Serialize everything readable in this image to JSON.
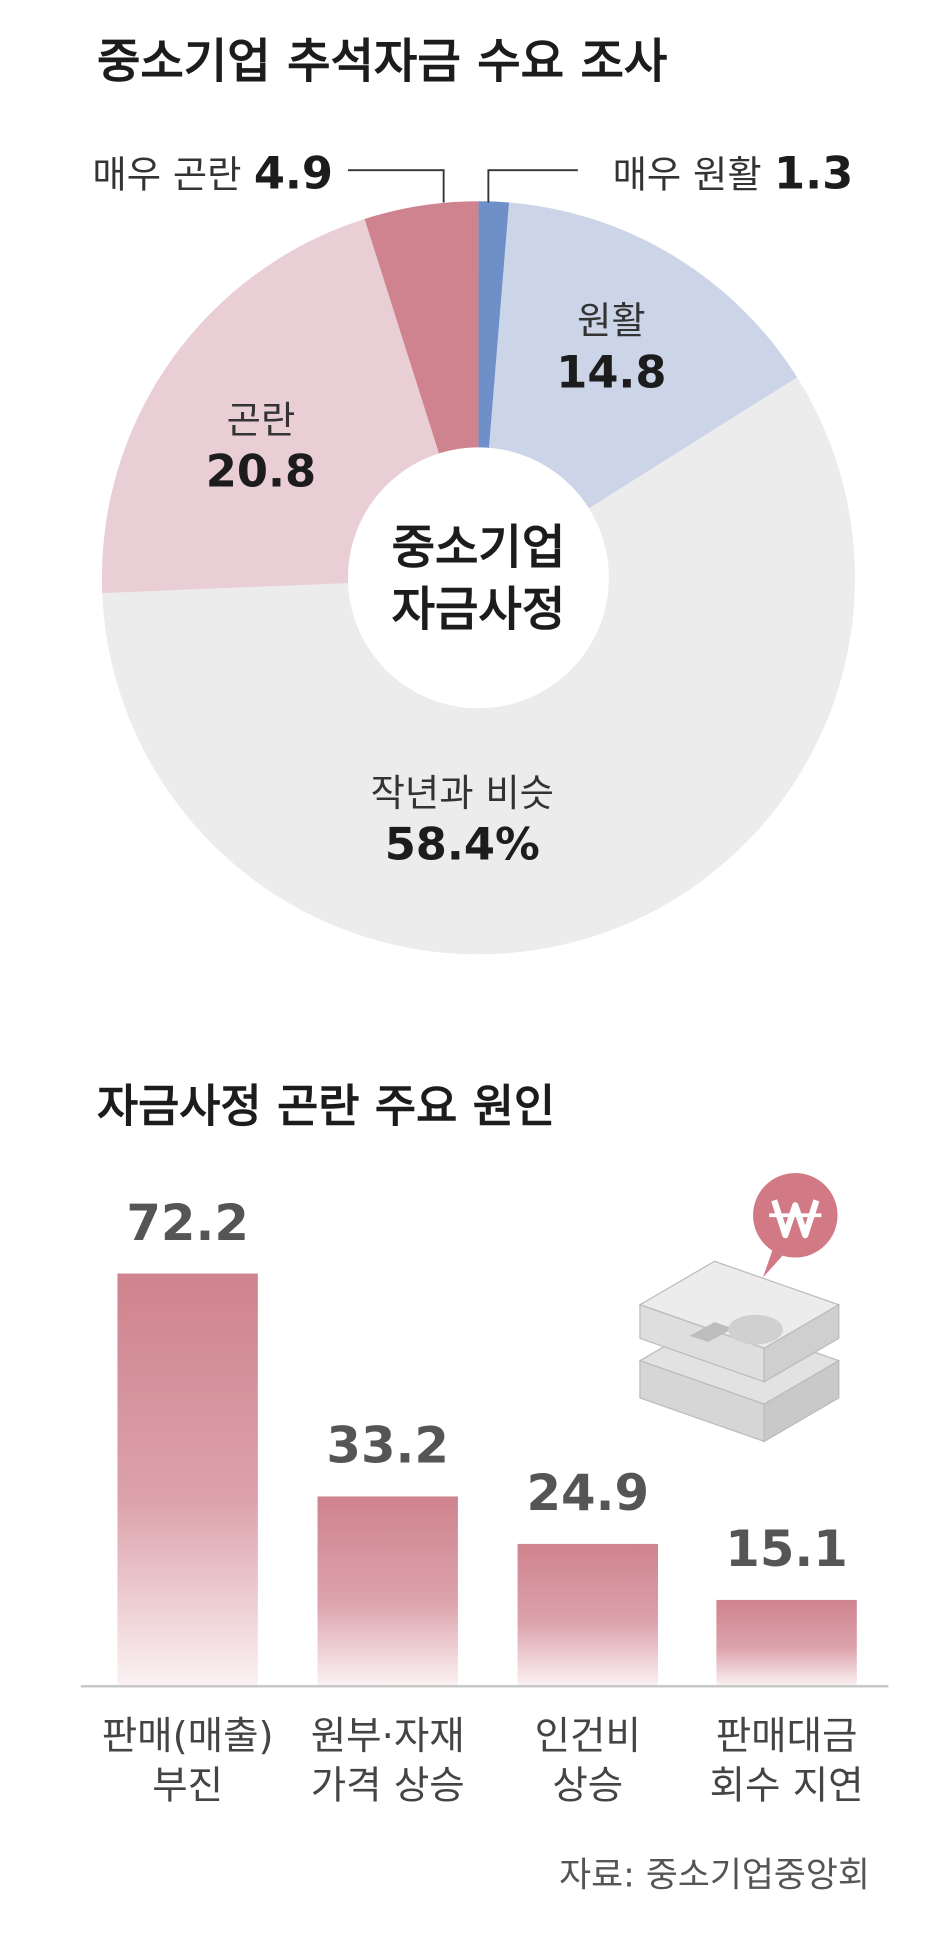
{
  "chart_data": [
    {
      "type": "donut",
      "title": "중소기업 추석자금 수요 조사",
      "center_label": [
        "중소기업",
        "자금사정"
      ],
      "categories": [
        "매우 원활",
        "원활",
        "작년과 비슷",
        "곤란",
        "매우 곤란"
      ],
      "values": [
        1.3,
        14.8,
        58.4,
        20.8,
        4.9
      ],
      "value_labels": [
        "1.3",
        "14.8",
        "58.4%",
        "20.8",
        "4.9"
      ],
      "colors": [
        "#6f8fc8",
        "#cbd5e7",
        "#ececec",
        "#e9cfd5",
        "#cf838e"
      ]
    },
    {
      "type": "bar",
      "title": "자금사정 곤란 주요 원인",
      "categories": [
        [
          "판매(매출)",
          "부진"
        ],
        [
          "원부·자재",
          "가격 상승"
        ],
        [
          "인건비",
          "상승"
        ],
        [
          "판매대금",
          "회수 지연"
        ]
      ],
      "values": [
        72.2,
        33.2,
        24.9,
        15.1
      ],
      "color": "#cf838e",
      "source": "자료: 중소기업중앙회"
    }
  ]
}
